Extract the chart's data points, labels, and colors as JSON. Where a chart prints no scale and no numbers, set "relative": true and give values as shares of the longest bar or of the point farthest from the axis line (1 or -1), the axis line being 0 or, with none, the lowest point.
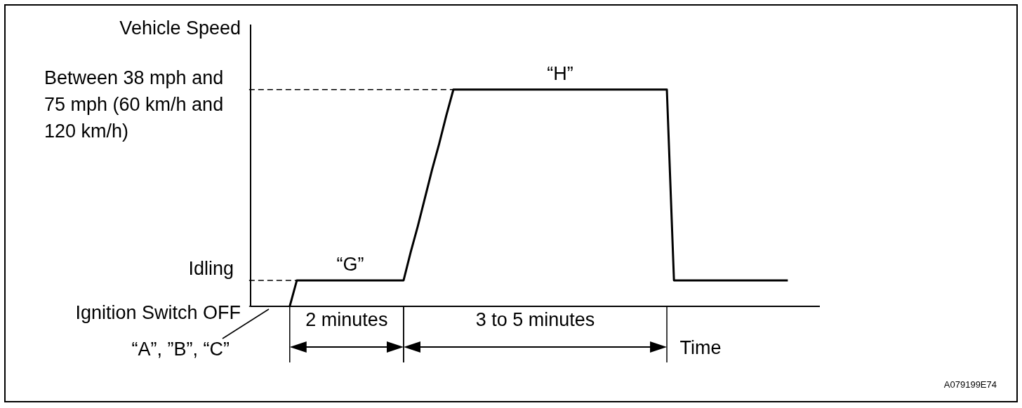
{
  "chart_data": {
    "type": "line",
    "relative": true,
    "xlabel": "Time",
    "ylabel": "Vehicle Speed",
    "categories": [
      null,
      null,
      null,
      null,
      null,
      null,
      null,
      null,
      null,
      null,
      null,
      null,
      null,
      null,
      null,
      null,
      null,
      null,
      null,
      null,
      null,
      null,
      null,
      null,
      null,
      null,
      null,
      null,
      null,
      null,
      null,
      null,
      null,
      null,
      null,
      null,
      null,
      null,
      null,
      null,
      null,
      null,
      null,
      null,
      null,
      null,
      null,
      null,
      null,
      null,
      null,
      null,
      null,
      null,
      null,
      null,
      null,
      null,
      null,
      null,
      null,
      null,
      null,
      null,
      null,
      null,
      null,
      null,
      null,
      null,
      null
    ],
    "values": [
      0,
      0.12,
      0.12,
      0.12,
      0.12,
      0.12,
      0.12,
      0.12,
      0.12,
      0.12,
      0.12,
      0.12,
      0.12,
      0.12,
      0.12,
      0.12,
      0.12,
      0.25,
      0.37,
      0.5,
      0.63,
      0.75,
      0.88,
      1,
      1,
      1,
      1,
      1,
      1,
      1,
      1,
      1,
      1,
      1,
      1,
      1,
      1,
      1,
      1,
      1,
      1,
      1,
      1,
      1,
      1,
      1,
      1,
      1,
      1,
      1,
      1,
      1,
      1,
      1,
      0.12,
      0.12,
      0.12,
      0.12,
      0.12,
      0.12,
      0.12,
      0.12,
      0.12,
      0.12,
      0.12,
      0.12,
      0.12,
      0.12,
      0.12,
      0.12,
      0.12
    ],
    "color": "#000000",
    "marker": "none",
    "line_style": "solid",
    "ref_lines": [
      {
        "axis": "y",
        "value": 1,
        "label": "Between 38 mph and 75 mph (60 km/h and 120 km/h)",
        "line_style": "dashed",
        "color": "#000000"
      },
      {
        "axis": "y",
        "value": 0.12,
        "label": "Idling",
        "line_style": "dashed",
        "color": "#000000"
      },
      {
        "axis": "y",
        "value": 0,
        "label": "Ignition Switch OFF",
        "line_style": "solid",
        "color": "#000000"
      }
    ],
    "annotations": [
      {
        "text": "“G”",
        "y": 0.12
      },
      {
        "text": "“H”",
        "y": 1
      },
      "2 minutes",
      "3 to 5 minutes",
      "“A”, ”B”, “C”",
      "A079199E74"
    ]
  }
}
